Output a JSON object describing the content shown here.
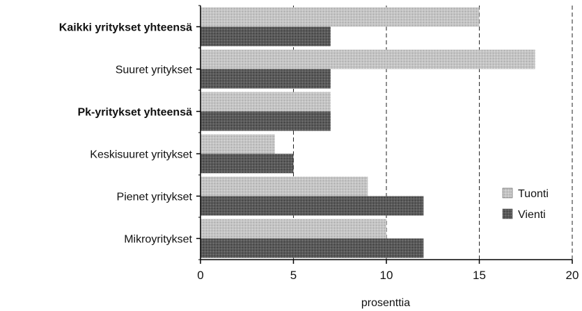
{
  "chart_data": {
    "type": "bar",
    "orientation": "horizontal",
    "categories": [
      "Kaikki yritykset yhteensä",
      "Suuret yritykset",
      "Pk-yritykset yhteensä",
      "Keskisuuret yritykset",
      "Pienet yritykset",
      "Mikroyritykset"
    ],
    "bold_categories": [
      "Kaikki yritykset yhteensä",
      "Pk-yritykset yhteensä"
    ],
    "series": [
      {
        "name": "Tuonti",
        "color": "#bdbdbd",
        "values": [
          15,
          18,
          7,
          4,
          9,
          10
        ]
      },
      {
        "name": "Vienti",
        "color": "#555555",
        "values": [
          7,
          7,
          7,
          5,
          12,
          12
        ]
      }
    ],
    "xlabel": "prosenttia",
    "xlim": [
      0,
      20
    ],
    "xticks": [
      0,
      5,
      10,
      15,
      20
    ],
    "grid": "vertical dashed lines at 5, 10, 15, 20",
    "legend_position": "bottom-right"
  }
}
